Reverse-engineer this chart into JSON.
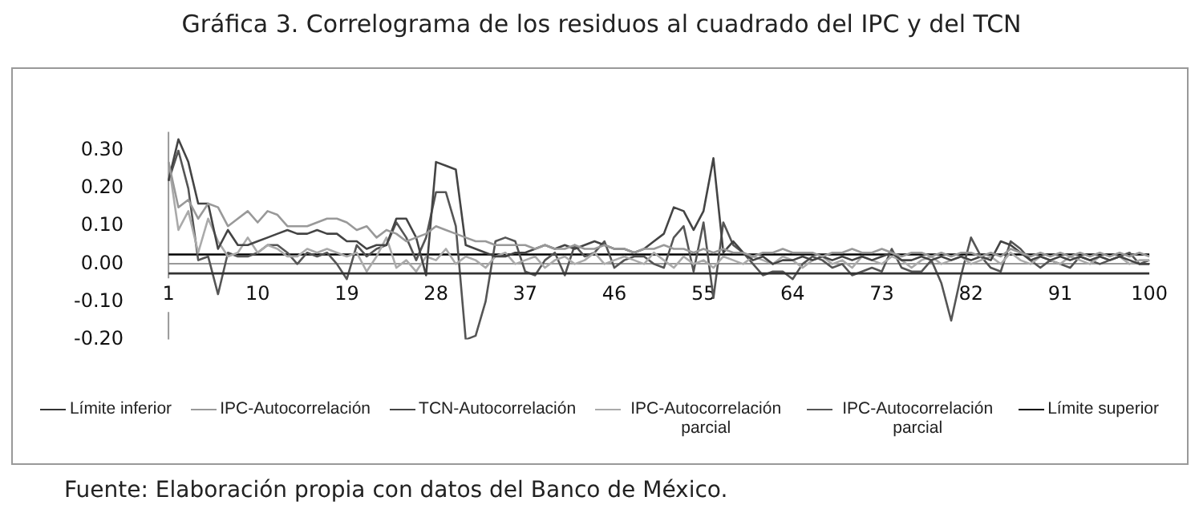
{
  "chart_data": {
    "type": "line",
    "title": "Gráfica 3. Correlograma de los residuos al cuadrado del IPC y del TCN",
    "categories": [
      "1",
      null,
      null,
      null,
      null,
      null,
      null,
      null,
      null,
      "10",
      null,
      null,
      null,
      null,
      null,
      null,
      null,
      null,
      "19",
      null,
      null,
      null,
      null,
      null,
      null,
      null,
      null,
      "28",
      null,
      null,
      null,
      null,
      null,
      null,
      null,
      null,
      "37",
      null,
      null,
      null,
      null,
      null,
      null,
      null,
      null,
      "46",
      null,
      null,
      null,
      null,
      null,
      null,
      null,
      null,
      "55",
      null,
      null,
      null,
      null,
      null,
      null,
      null,
      null,
      "64",
      null,
      null,
      null,
      null,
      null,
      null,
      null,
      null,
      "73",
      null,
      null,
      null,
      null,
      null,
      null,
      null,
      null,
      "82",
      null,
      null,
      null,
      null,
      null,
      null,
      null,
      null,
      "91",
      null,
      null,
      null,
      null,
      null,
      null,
      null,
      null,
      "100"
    ],
    "series": [
      {
        "name": "Límite inferior",
        "color": "#333333",
        "values": [
          -0.025,
          -0.025,
          -0.025,
          -0.025,
          -0.025,
          -0.025,
          -0.025,
          -0.025,
          -0.025,
          -0.025,
          -0.025,
          -0.025,
          -0.025,
          -0.025,
          -0.025,
          -0.025,
          -0.025,
          -0.025,
          -0.025,
          -0.025,
          -0.025,
          -0.025,
          -0.025,
          -0.025,
          -0.025,
          -0.025,
          -0.025,
          -0.025,
          -0.025,
          -0.025,
          -0.025,
          -0.025,
          -0.025,
          -0.025,
          -0.025,
          -0.025,
          -0.025,
          -0.025,
          -0.025,
          -0.025,
          -0.025,
          -0.025,
          -0.025,
          -0.025,
          -0.025,
          -0.025,
          -0.025,
          -0.025,
          -0.025,
          -0.025,
          -0.025,
          -0.025,
          -0.025,
          -0.025,
          -0.025,
          -0.025,
          -0.025,
          -0.025,
          -0.025,
          -0.025,
          -0.025,
          -0.025,
          -0.025,
          -0.025,
          -0.025,
          -0.025,
          -0.025,
          -0.025,
          -0.025,
          -0.025,
          -0.025,
          -0.025,
          -0.025,
          -0.025,
          -0.025,
          -0.025,
          -0.025,
          -0.025,
          -0.025,
          -0.025,
          -0.025,
          -0.025,
          -0.025,
          -0.025,
          -0.025,
          -0.025,
          -0.025,
          -0.025,
          -0.025,
          -0.025,
          -0.025,
          -0.025,
          -0.025,
          -0.025,
          -0.025,
          -0.025,
          -0.025,
          -0.025,
          -0.025,
          -0.025
        ]
      },
      {
        "name": "IPC-Autocorrelación",
        "color": "#999999",
        "values": [
          0.27,
          0.15,
          0.17,
          0.12,
          0.16,
          0.15,
          0.1,
          0.12,
          0.14,
          0.11,
          0.14,
          0.13,
          0.1,
          0.1,
          0.1,
          0.11,
          0.12,
          0.12,
          0.11,
          0.09,
          0.1,
          0.07,
          0.09,
          0.08,
          0.06,
          0.07,
          0.08,
          0.1,
          0.09,
          0.08,
          0.07,
          0.06,
          0.06,
          0.05,
          0.05,
          0.05,
          0.05,
          0.04,
          0.05,
          0.04,
          0.04,
          0.05,
          0.04,
          0.04,
          0.05,
          0.04,
          0.04,
          0.03,
          0.04,
          0.04,
          0.05,
          0.04,
          0.04,
          0.03,
          0.04,
          0.03,
          0.04,
          0.03,
          0.03,
          0.02,
          0.03,
          0.03,
          0.04,
          0.03,
          0.03,
          0.03,
          0.02,
          0.03,
          0.03,
          0.04,
          0.03,
          0.03,
          0.04,
          0.03,
          0.02,
          0.03,
          0.03,
          0.02,
          0.03,
          0.02,
          0.03,
          0.03,
          0.02,
          0.03,
          0.02,
          0.04,
          0.03,
          0.02,
          0.03,
          0.02,
          0.03,
          0.02,
          0.03,
          0.02,
          0.03,
          0.02,
          0.03,
          0.02,
          0.03,
          0.02
        ]
      },
      {
        "name": "TCN-Autocorrelación",
        "color": "#444444",
        "values": [
          0.22,
          0.33,
          0.27,
          0.16,
          0.16,
          0.04,
          0.09,
          0.05,
          0.05,
          0.06,
          0.07,
          0.08,
          0.09,
          0.08,
          0.08,
          0.09,
          0.08,
          0.08,
          0.06,
          0.06,
          0.04,
          0.05,
          0.05,
          0.12,
          0.12,
          0.07,
          -0.03,
          0.27,
          0.26,
          0.25,
          0.05,
          0.04,
          0.03,
          0.02,
          0.02,
          0.03,
          0.03,
          0.04,
          0.05,
          0.04,
          0.05,
          0.04,
          0.05,
          0.06,
          0.05,
          0.04,
          0.04,
          0.03,
          0.04,
          0.06,
          0.08,
          0.15,
          0.14,
          0.09,
          0.14,
          0.28,
          0.03,
          0.06,
          0.03,
          0.01,
          0.02,
          0,
          0.01,
          0.01,
          0.02,
          0.01,
          0.02,
          0.01,
          0.02,
          0.01,
          0.02,
          0.01,
          0.02,
          0.03,
          0.01,
          0.01,
          0.02,
          0.01,
          0.02,
          0.01,
          0.02,
          0.01,
          0.02,
          0.01,
          0.06,
          0.05,
          0.03,
          0.01,
          0.02,
          0.01,
          0.02,
          0.01,
          0.02,
          0.01,
          0.02,
          0.01,
          0.02,
          0.01,
          0,
          0
        ]
      },
      {
        "name": "IPC-Autocorrelación parcial",
        "color": "#aaaaaa",
        "values": [
          0.27,
          0.09,
          0.14,
          0.03,
          0.12,
          0.06,
          0.02,
          0.03,
          0.07,
          0.03,
          0.05,
          0.04,
          0.02,
          0.02,
          0.04,
          0.03,
          0.04,
          0.03,
          0.02,
          0.03,
          -0.02,
          0.02,
          0.07,
          -0.01,
          0.01,
          -0.02,
          0.02,
          0.01,
          0.04,
          0,
          0.02,
          0.01,
          -0.01,
          0.02,
          0.03,
          0,
          0.01,
          0.02,
          -0.01,
          0.01,
          0.02,
          0,
          0.01,
          0.03,
          0,
          0.01,
          0.02,
          0.01,
          0,
          0.03,
          0.01,
          -0.01,
          0.02,
          0,
          0.01,
          -0.01,
          0.02,
          0.01,
          0,
          0.02,
          0.01,
          0,
          0.02,
          0.01,
          -0.01,
          0.01,
          0.02,
          0,
          0.01,
          -0.01,
          0.02,
          0.01,
          0,
          0.02,
          0.01,
          -0.01,
          0.01,
          0.02,
          0,
          0.01,
          0.02,
          0,
          0.01,
          0.02,
          0,
          0.03,
          0.01,
          0,
          0.02,
          0.01,
          0,
          0.02,
          0.01,
          0,
          0.02,
          0.01,
          0.02,
          0,
          0.01,
          0.01
        ]
      },
      {
        "name": "IPC-Autocorrelación parcial",
        "color": "#555555",
        "values": [
          0.22,
          0.3,
          0.2,
          0.01,
          0.02,
          -0.08,
          0.03,
          0.02,
          0.02,
          0.03,
          0.05,
          0.05,
          0.03,
          0,
          0.03,
          0.02,
          0.03,
          0,
          -0.04,
          0.05,
          0.02,
          0.04,
          0.05,
          0.11,
          0.07,
          0.01,
          0.07,
          0.19,
          0.19,
          0.1,
          -0.2,
          -0.19,
          -0.1,
          0.06,
          0.07,
          0.06,
          -0.02,
          -0.03,
          0.01,
          0.03,
          -0.03,
          0.05,
          0.02,
          0.03,
          0.06,
          -0.01,
          0.01,
          0.02,
          0.02,
          0,
          -0.01,
          0.07,
          0.1,
          -0.02,
          0.11,
          -0.09,
          0.11,
          0.05,
          0.03,
          0,
          -0.03,
          -0.02,
          -0.02,
          -0.04,
          0,
          0.02,
          0.01,
          -0.01,
          0,
          -0.03,
          -0.02,
          -0.01,
          -0.02,
          0.04,
          -0.01,
          -0.02,
          -0.02,
          0.01,
          -0.05,
          -0.15,
          -0.03,
          0.07,
          0.02,
          -0.01,
          -0.02,
          0.06,
          0.04,
          0.01,
          -0.01,
          0.01,
          0,
          -0.01,
          0.02,
          0.01,
          0,
          0.01,
          0.02,
          0.03,
          0,
          0.01
        ]
      },
      {
        "name": "Límite superior",
        "color": "#000000",
        "values": [
          0.025,
          0.025,
          0.025,
          0.025,
          0.025,
          0.025,
          0.025,
          0.025,
          0.025,
          0.025,
          0.025,
          0.025,
          0.025,
          0.025,
          0.025,
          0.025,
          0.025,
          0.025,
          0.025,
          0.025,
          0.025,
          0.025,
          0.025,
          0.025,
          0.025,
          0.025,
          0.025,
          0.025,
          0.025,
          0.025,
          0.025,
          0.025,
          0.025,
          0.025,
          0.025,
          0.025,
          0.025,
          0.025,
          0.025,
          0.025,
          0.025,
          0.025,
          0.025,
          0.025,
          0.025,
          0.025,
          0.025,
          0.025,
          0.025,
          0.025,
          0.025,
          0.025,
          0.025,
          0.025,
          0.025,
          0.025,
          0.025,
          0.025,
          0.025,
          0.025,
          0.025,
          0.025,
          0.025,
          0.025,
          0.025,
          0.025,
          0.025,
          0.025,
          0.025,
          0.025,
          0.025,
          0.025,
          0.025,
          0.025,
          0.025,
          0.025,
          0.025,
          0.025,
          0.025,
          0.025,
          0.025,
          0.025,
          0.025,
          0.025,
          0.025,
          0.025,
          0.025,
          0.025,
          0.025,
          0.025,
          0.025,
          0.025,
          0.025,
          0.025,
          0.025,
          0.025,
          0.025,
          0.025,
          0.025,
          0.025
        ]
      }
    ],
    "ylim": [
      -0.2,
      0.35
    ],
    "yticks": [
      {
        "value": -0.2,
        "label": "-0.20"
      },
      {
        "value": -0.1,
        "label": "-0.10"
      },
      {
        "value": 0,
        "label": "0.00"
      },
      {
        "value": 0.1,
        "label": "0.10"
      },
      {
        "value": 0.2,
        "label": "0.20"
      },
      {
        "value": 0.3,
        "label": "0.30"
      }
    ],
    "grid": false,
    "legend": "bottom",
    "marker": "none",
    "line_style": "solid",
    "annotations": [
      "Fuente: Elaboración propia con datos del Banco de México."
    ]
  }
}
